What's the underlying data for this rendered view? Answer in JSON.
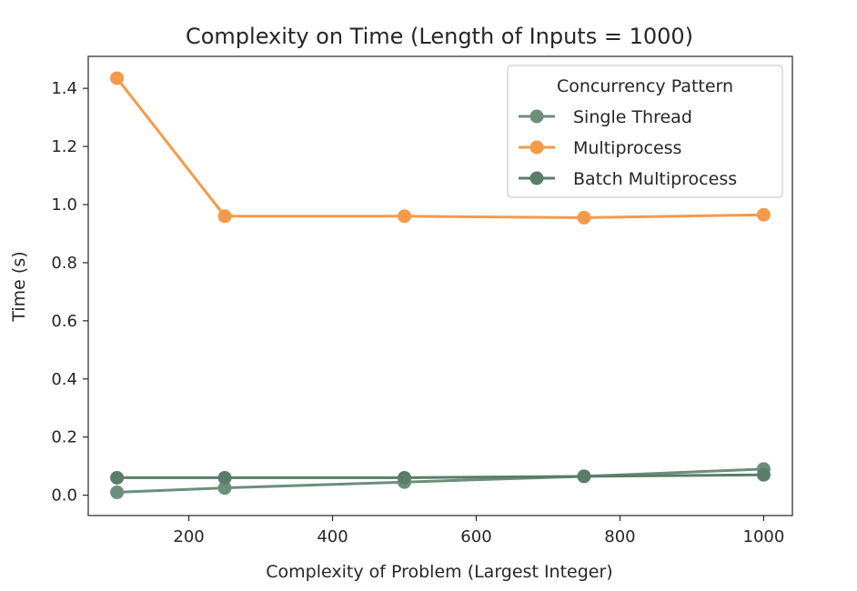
{
  "chart_data": {
    "type": "line",
    "title": "Complexity on Time (Length of Inputs = 1000)",
    "xlabel": "Complexity of Problem (Largest Integer)",
    "ylabel": "Time (s)",
    "xlim": [
      60,
      1040
    ],
    "ylim": [
      -0.07,
      1.51
    ],
    "x_ticks": [
      200,
      400,
      600,
      800,
      1000
    ],
    "y_ticks": [
      0.0,
      0.2,
      0.4,
      0.6,
      0.8,
      1.0,
      1.2,
      1.4
    ],
    "x_tick_labels": [
      "200",
      "400",
      "600",
      "800",
      "1000"
    ],
    "y_tick_labels": [
      "0.0",
      "0.2",
      "0.4",
      "0.6",
      "0.8",
      "1.0",
      "1.2",
      "1.4"
    ],
    "grid": false,
    "legend": {
      "title": "Concurrency Pattern",
      "position": "top-right"
    },
    "x": [
      100,
      250,
      500,
      750,
      1000
    ],
    "series": [
      {
        "name": "Single Thread",
        "color": "#6b8f7a",
        "values": [
          0.01,
          0.025,
          0.045,
          0.065,
          0.09
        ]
      },
      {
        "name": "Multiprocess",
        "color": "#f59a4a",
        "values": [
          1.435,
          0.96,
          0.96,
          0.955,
          0.965
        ]
      },
      {
        "name": "Batch Multiprocess",
        "color": "#5a7d69",
        "values": [
          0.06,
          0.06,
          0.06,
          0.065,
          0.07
        ]
      }
    ]
  }
}
